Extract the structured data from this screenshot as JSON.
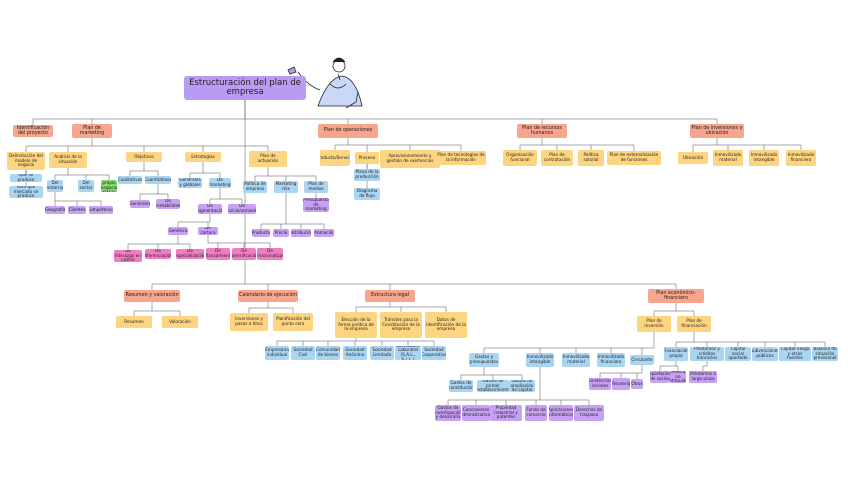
{
  "title": "Estructuración del plan de empresa",
  "nodes": [
    {
      "label": "Identificación del proyecto"
    },
    {
      "label": "Plan de marketing"
    },
    {
      "label": "Plan de operaciones"
    },
    {
      "label": "Plan de recursos humanos"
    },
    {
      "label": "Plan de inversiones y ubicación"
    },
    {
      "label": "Delimitación del modelo de negocio"
    },
    {
      "label": "Análisis de la situación"
    },
    {
      "label": "Objetivos"
    },
    {
      "label": "Estrategias"
    },
    {
      "label": "Plan de actuación"
    },
    {
      "label": "Qué se produce"
    },
    {
      "label": "Para qué mercado se produce"
    },
    {
      "label": "Del entorno"
    },
    {
      "label": "Del sector"
    },
    {
      "label": "Del propio negocio (DAFO)"
    },
    {
      "label": "Geografía"
    },
    {
      "label": "Clientes"
    },
    {
      "label": "Competencia"
    },
    {
      "label": "Cualitativos"
    },
    {
      "label": "Cuantitativos"
    },
    {
      "label": "Generales"
    },
    {
      "label": "De rentabilidad"
    },
    {
      "label": "Generales y globales"
    },
    {
      "label": "De marketing"
    },
    {
      "label": "De segmentación"
    },
    {
      "label": "De posicionamiento"
    },
    {
      "label": "Genérica"
    },
    {
      "label": "De cartera"
    },
    {
      "label": "De liderazgo en costes"
    },
    {
      "label": "De diferenciación"
    },
    {
      "label": "De especialización"
    },
    {
      "label": "De afianzamiento"
    },
    {
      "label": "De diversificación"
    },
    {
      "label": "De internacionalización"
    },
    {
      "label": "Política de empresa"
    },
    {
      "label": "Marketing mix"
    },
    {
      "label": "Plan de medios"
    },
    {
      "label": "Presupuesto de marketing"
    },
    {
      "label": "Producto"
    },
    {
      "label": "Precio"
    },
    {
      "label": "Distribución"
    },
    {
      "label": "Promoción"
    },
    {
      "label": "Producto/Servicio"
    },
    {
      "label": "Proceso"
    },
    {
      "label": "Aprovisionamiento y gestión de existencias"
    },
    {
      "label": "Plan de tecnologías de la información"
    },
    {
      "label": "Plano de la producción"
    },
    {
      "label": "Diagrama de flujo"
    },
    {
      "label": "Organización funcional"
    },
    {
      "label": "Plan de contratación"
    },
    {
      "label": "Política salarial"
    },
    {
      "label": "Plan de externalización de funciones"
    },
    {
      "label": "Ubicación"
    },
    {
      "label": "Inmovilizado material"
    },
    {
      "label": "Inmovilizado intangible"
    },
    {
      "label": "Inmovilizado financiero"
    },
    {
      "label": "Resumen y valoración"
    },
    {
      "label": "Calendario de ejecución"
    },
    {
      "label": "Estructura legal"
    },
    {
      "label": "Plan económico-financiero"
    },
    {
      "label": "Resumen"
    },
    {
      "label": "Valoración"
    },
    {
      "label": "Inversiones y pasos a hitos"
    },
    {
      "label": "Planificación del punto cero"
    },
    {
      "label": "Elección de la forma jurídica de la empresa"
    },
    {
      "label": "Trámites para la Constitución de la empresa"
    },
    {
      "label": "Datos de identificación de la empresa"
    },
    {
      "label": "Plan de inversión"
    },
    {
      "label": "Plan de financiación"
    },
    {
      "label": "Empresario individual"
    },
    {
      "label": "Sociedad Civil"
    },
    {
      "label": "Comunidad de bienes"
    },
    {
      "label": "Sociedad Anónima"
    },
    {
      "label": "Sociedad Limitada"
    },
    {
      "label": "Sociedades Laborales (S.A.L., S.L.L.)"
    },
    {
      "label": "Sociedad Cooperativa"
    },
    {
      "label": "Gastos y presupuestos"
    },
    {
      "label": "Inmovilizado intangible"
    },
    {
      "label": "Inmovilizado material"
    },
    {
      "label": "Inmovilizado financiero"
    },
    {
      "label": "Circulante"
    },
    {
      "label": "Gastos de constitución"
    },
    {
      "label": "Gastos de primer establecimiento"
    },
    {
      "label": "Gastos de ampliación de capital"
    },
    {
      "label": "Gastos de investigación y desarrollo"
    },
    {
      "label": "Concesiones administrativas"
    },
    {
      "label": "Propiedad industrial y patentes"
    },
    {
      "label": "Fondo de comercio"
    },
    {
      "label": "Aplicaciones informáticas"
    },
    {
      "label": "Derechos de traspaso"
    },
    {
      "label": "Existencias iniciales"
    },
    {
      "label": "Tesorería"
    },
    {
      "label": "Otros"
    },
    {
      "label": "Financiación propia"
    },
    {
      "label": "Préstamos y créditos bancarios"
    },
    {
      "label": "Capital social aportado"
    },
    {
      "label": "Subvenciones públicas"
    },
    {
      "label": "Capital riesgo y otras fuentes"
    },
    {
      "label": "Balance de situación previsional"
    },
    {
      "label": "Aportación de socios"
    },
    {
      "label": "Beneficios no distribuidos"
    },
    {
      "label": "Préstamos a largo plazo"
    }
  ]
}
